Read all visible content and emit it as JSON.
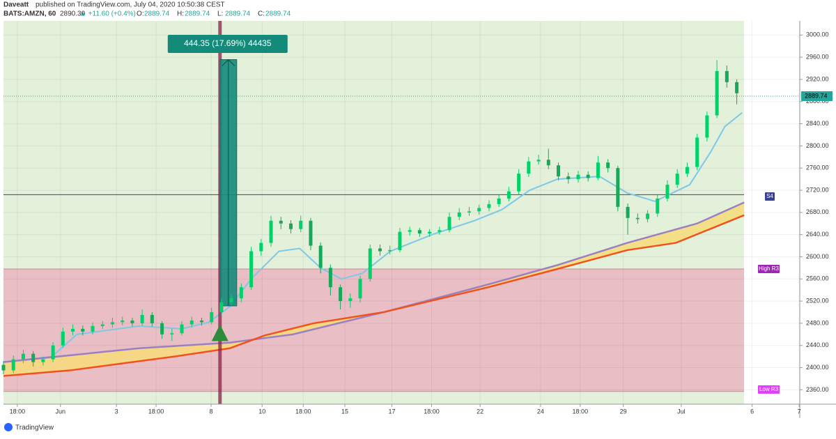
{
  "header": {
    "publisher": "Daveatt",
    "published": "published on TradingView.com, July 04, 2020 10:50:38 CEST",
    "symbol": "BATS:AMZN, 60",
    "last": "2890.30",
    "change": "▲ +11.60 (+0.4%)",
    "ohlc": [
      {
        "label": "O:",
        "value": "2889.74"
      },
      {
        "label": "H:",
        "value": "2889.74"
      },
      {
        "label": "L:",
        "value": "2889.74"
      },
      {
        "label": "C:",
        "value": "2889.74"
      }
    ]
  },
  "footer": {
    "brand": "TradingView"
  },
  "chart_data": {
    "type": "candlestick",
    "up_color": "#00d26a",
    "down_color": "#17a85a",
    "x": [
      0,
      2,
      4,
      6,
      8,
      10,
      12,
      14,
      16,
      18,
      20,
      22,
      24,
      26,
      28,
      30,
      32,
      34,
      36,
      38,
      40,
      42,
      44,
      46,
      48,
      50,
      52,
      54,
      56,
      58,
      60,
      62,
      64,
      66,
      68,
      70,
      72,
      74,
      76,
      78,
      80,
      82,
      84,
      86,
      88,
      90,
      92,
      94,
      96,
      98,
      100,
      102,
      104,
      106,
      108,
      110,
      112,
      114,
      116,
      118,
      120,
      122,
      124,
      126,
      128,
      130,
      132,
      134,
      136,
      138,
      140,
      142,
      144,
      146,
      148
    ],
    "open": [
      2405,
      2395,
      2415,
      2425,
      2410,
      2415,
      2440,
      2465,
      2470,
      2465,
      2475,
      2478,
      2482,
      2485,
      2480,
      2495,
      2480,
      2460,
      2462,
      2478,
      2485,
      2482,
      2500,
      2518,
      2525,
      2545,
      2610,
      2625,
      2665,
      2660,
      2650,
      2665,
      2620,
      2580,
      2545,
      2520,
      2525,
      2560,
      2615,
      2610,
      2612,
      2645,
      2648,
      2642,
      2645,
      2648,
      2672,
      2680,
      2682,
      2688,
      2695,
      2705,
      2718,
      2750,
      2772,
      2775,
      2765,
      2745,
      2740,
      2748,
      2742,
      2770,
      2760,
      2690,
      2670,
      2668,
      2678,
      2705,
      2730,
      2750,
      2762,
      2815,
      2855,
      2935,
      2915
    ],
    "high": [
      2412,
      2422,
      2432,
      2430,
      2420,
      2446,
      2472,
      2478,
      2476,
      2481,
      2484,
      2490,
      2492,
      2490,
      2505,
      2500,
      2484,
      2470,
      2484,
      2492,
      2490,
      2508,
      2526,
      2532,
      2552,
      2618,
      2632,
      2674,
      2672,
      2666,
      2674,
      2670,
      2626,
      2586,
      2550,
      2534,
      2566,
      2622,
      2622,
      2620,
      2652,
      2654,
      2652,
      2650,
      2654,
      2680,
      2688,
      2690,
      2694,
      2702,
      2712,
      2726,
      2758,
      2780,
      2784,
      2795,
      2770,
      2752,
      2755,
      2754,
      2782,
      2776,
      2764,
      2696,
      2678,
      2684,
      2712,
      2738,
      2758,
      2770,
      2822,
      2862,
      2955,
      2945,
      2920
    ],
    "low": [
      2388,
      2390,
      2408,
      2402,
      2404,
      2410,
      2436,
      2458,
      2458,
      2460,
      2470,
      2472,
      2476,
      2474,
      2476,
      2474,
      2452,
      2448,
      2458,
      2472,
      2476,
      2478,
      2494,
      2512,
      2518,
      2540,
      2602,
      2618,
      2650,
      2642,
      2644,
      2612,
      2570,
      2530,
      2505,
      2508,
      2518,
      2555,
      2602,
      2604,
      2608,
      2638,
      2636,
      2636,
      2640,
      2644,
      2666,
      2674,
      2676,
      2682,
      2690,
      2700,
      2712,
      2744,
      2766,
      2758,
      2738,
      2732,
      2734,
      2736,
      2738,
      2752,
      2682,
      2640,
      2660,
      2662,
      2672,
      2700,
      2724,
      2744,
      2756,
      2808,
      2850,
      2905,
      2875
    ],
    "close": [
      2395,
      2415,
      2425,
      2410,
      2415,
      2440,
      2465,
      2470,
      2465,
      2475,
      2478,
      2482,
      2485,
      2480,
      2495,
      2480,
      2460,
      2462,
      2478,
      2485,
      2482,
      2500,
      2518,
      2525,
      2545,
      2610,
      2625,
      2665,
      2660,
      2650,
      2665,
      2620,
      2580,
      2545,
      2520,
      2525,
      2560,
      2615,
      2610,
      2612,
      2645,
      2648,
      2642,
      2645,
      2648,
      2672,
      2680,
      2682,
      2688,
      2695,
      2705,
      2718,
      2750,
      2772,
      2775,
      2765,
      2745,
      2740,
      2748,
      2742,
      2770,
      2760,
      2690,
      2670,
      2668,
      2678,
      2705,
      2730,
      2750,
      2762,
      2815,
      2855,
      2935,
      2915,
      2895
    ],
    "lines": [
      {
        "color": "#7cc8e8",
        "x": [
          0,
          9.8,
          14.8,
          27.4,
          35.9,
          41.5,
          45.7,
          50,
          55.6,
          59.8,
          64,
          68.2,
          72.4,
          78.1,
          86.5,
          95,
          100.6,
          106.2,
          111.8,
          120.3,
          125.9,
          131.5,
          138.5,
          142.8,
          145.6,
          149.1
        ],
        "values": [
          2410,
          2420,
          2460,
          2475,
          2470,
          2482,
          2510,
          2560,
          2610,
          2615,
          2580,
          2560,
          2570,
          2610,
          2640,
          2665,
          2685,
          2720,
          2740,
          2745,
          2715,
          2700,
          2730,
          2790,
          2835,
          2860
        ]
      },
      {
        "color": "#9b7fc4",
        "x": [
          0,
          27.4,
          45.7,
          58.4,
          76.7,
          97.8,
          111.8,
          125.9,
          140,
          149.5
        ],
        "values": [
          2410,
          2435,
          2445,
          2460,
          2500,
          2550,
          2585,
          2625,
          2660,
          2698
        ]
      },
      {
        "color": "#f0521e",
        "x": [
          0,
          13.4,
          34.5,
          45.7,
          52.7,
          62.6,
          76.7,
          97.8,
          111.8,
          125.9,
          135.7,
          149.5
        ],
        "values": [
          2385,
          2395,
          2420,
          2435,
          2458,
          2480,
          2500,
          2545,
          2578,
          2612,
          2625,
          2675
        ]
      }
    ],
    "band_fill": "#f7dc7a",
    "levels": [
      {
        "label": "S4",
        "value": 2712,
        "color": "#3a3f94"
      },
      {
        "label": "High R3",
        "value": 2578,
        "color": "#9c27b0"
      },
      {
        "label": "Low R3",
        "value": 2357,
        "color": "#e040fb"
      }
    ],
    "zone_color": "#eab8c2",
    "last_price": 2889.74,
    "measure": {
      "x": 43.7,
      "from": 2511.4,
      "to": 2955.75,
      "label": "444.35 (17.69%) 44435"
    },
    "signal": {
      "x": 43.7,
      "value": 2463
    },
    "xlim": [
      0,
      161
    ],
    "xticks": [
      {
        "value": 2.8,
        "label": "18:00"
      },
      {
        "value": 11.5,
        "label": "Jun"
      },
      {
        "value": 22.8,
        "label": "3"
      },
      {
        "value": 30.8,
        "label": "18:00"
      },
      {
        "value": 41.9,
        "label": "8"
      },
      {
        "value": 52.2,
        "label": "10"
      },
      {
        "value": 60.5,
        "label": "18:00"
      },
      {
        "value": 68.9,
        "label": "15"
      },
      {
        "value": 78.4,
        "label": "17"
      },
      {
        "value": 86.4,
        "label": "18:00"
      },
      {
        "value": 96.2,
        "label": "22"
      },
      {
        "value": 108.4,
        "label": "24"
      },
      {
        "value": 116.4,
        "label": "18:00"
      },
      {
        "value": 125.1,
        "label": "29"
      },
      {
        "value": 136.8,
        "label": "Jul"
      },
      {
        "value": 151.1,
        "label": "6"
      },
      {
        "value": 160.6,
        "label": "7"
      }
    ],
    "ylim": [
      2334.1,
      3025.5
    ],
    "yticks": [
      {
        "value": 2360,
        "label": "2360.00"
      },
      {
        "value": 2400,
        "label": "2400.00"
      },
      {
        "value": 2440,
        "label": "2440.00"
      },
      {
        "value": 2480,
        "label": "2480.00"
      },
      {
        "value": 2520,
        "label": "2520.00"
      },
      {
        "value": 2560,
        "label": "2560.00"
      },
      {
        "value": 2600,
        "label": "2600.00"
      },
      {
        "value": 2640,
        "label": "2640.00"
      },
      {
        "value": 2680,
        "label": "2680.00"
      },
      {
        "value": 2720,
        "label": "2720.00"
      },
      {
        "value": 2760,
        "label": "2760.00"
      },
      {
        "value": 2800,
        "label": "2800.00"
      },
      {
        "value": 2840,
        "label": "2840.00"
      },
      {
        "value": 2880,
        "label": "2880.00"
      },
      {
        "value": 2920,
        "label": "2920.00"
      },
      {
        "value": 2960,
        "label": "2960.00"
      },
      {
        "value": 3000,
        "label": "3000.00"
      }
    ],
    "grid": true
  }
}
